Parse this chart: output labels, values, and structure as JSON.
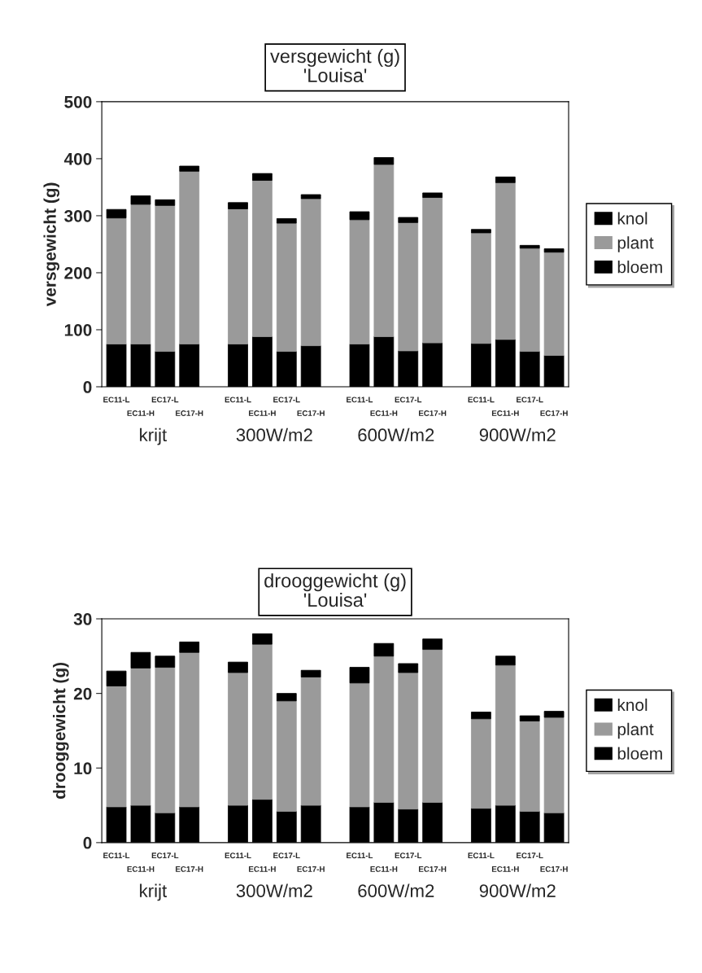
{
  "chart_data": [
    {
      "type": "bar",
      "title": "versgewicht (g)",
      "subtitle": "'Louisa'",
      "ylabel": "versgewicht (g)",
      "stacked": true,
      "legend": "right",
      "grid": false,
      "categories": [
        "EC11-L",
        "EC11-H",
        "EC17-L",
        "EC17-H",
        null,
        "EC11-L",
        "EC11-H",
        "EC17-L",
        "EC17-H",
        null,
        "EC11-L",
        "EC11-H",
        "EC17-L",
        "EC17-H",
        null,
        "EC11-L",
        "EC11-H",
        "EC17-L",
        "EC17-H"
      ],
      "series": [
        {
          "name": "bloem",
          "color": "#000000",
          "values": [
            75,
            75,
            62,
            75,
            null,
            75,
            88,
            62,
            72,
            null,
            75,
            88,
            63,
            77,
            null,
            76,
            83,
            62,
            55
          ]
        },
        {
          "name": "plant",
          "color": "#9a9a9a",
          "values": [
            221,
            245,
            256,
            303,
            null,
            237,
            274,
            225,
            258,
            null,
            218,
            302,
            225,
            255,
            null,
            194,
            275,
            181,
            181
          ]
        },
        {
          "name": "knol",
          "color": "#000000",
          "values": [
            15,
            15,
            10,
            9,
            null,
            11,
            12,
            8,
            7,
            null,
            14,
            12,
            9,
            8,
            null,
            6,
            10,
            5,
            6
          ]
        }
      ],
      "ylim": [
        0,
        500
      ],
      "yticks": [
        0,
        100,
        200,
        300,
        400,
        500
      ],
      "annotations": [
        "krijt",
        "300W/m2",
        "600W/m2",
        "900W/m2"
      ]
    },
    {
      "type": "bar",
      "title": "drooggewicht (g)",
      "subtitle": "'Louisa'",
      "ylabel": "drooggewicht (g)",
      "stacked": true,
      "legend": "right",
      "grid": false,
      "categories": [
        "EC11-L",
        "EC11-H",
        "EC17-L",
        "EC17-H",
        null,
        "EC11-L",
        "EC11-H",
        "EC17-L",
        "EC17-H",
        null,
        "EC11-L",
        "EC11-H",
        "EC17-L",
        "EC17-H",
        null,
        "EC11-L",
        "EC11-H",
        "EC17-L",
        "EC17-H"
      ],
      "series": [
        {
          "name": "bloem",
          "color": "#000000",
          "values": [
            4.8,
            5,
            4,
            4.8,
            null,
            5,
            5.8,
            4.2,
            5,
            null,
            4.8,
            5.4,
            4.5,
            5.4,
            null,
            4.6,
            5,
            4.2,
            4
          ]
        },
        {
          "name": "plant",
          "color": "#9a9a9a",
          "values": [
            16.2,
            18.4,
            19.5,
            20.7,
            null,
            17.8,
            20.8,
            14.8,
            17.2,
            null,
            16.6,
            19.6,
            18.3,
            20.5,
            null,
            12,
            18.8,
            12.1,
            12.8
          ]
        },
        {
          "name": "knol",
          "color": "#000000",
          "values": [
            2,
            2.1,
            1.5,
            1.4,
            null,
            1.4,
            1.4,
            1,
            0.9,
            null,
            2.1,
            1.7,
            1.2,
            1.4,
            null,
            0.9,
            1.2,
            0.7,
            0.8
          ]
        }
      ],
      "ylim": [
        0,
        30
      ],
      "yticks": [
        0,
        10,
        20,
        30
      ],
      "annotations": [
        "krijt",
        "300W/m2",
        "600W/m2",
        "900W/m2"
      ]
    }
  ]
}
